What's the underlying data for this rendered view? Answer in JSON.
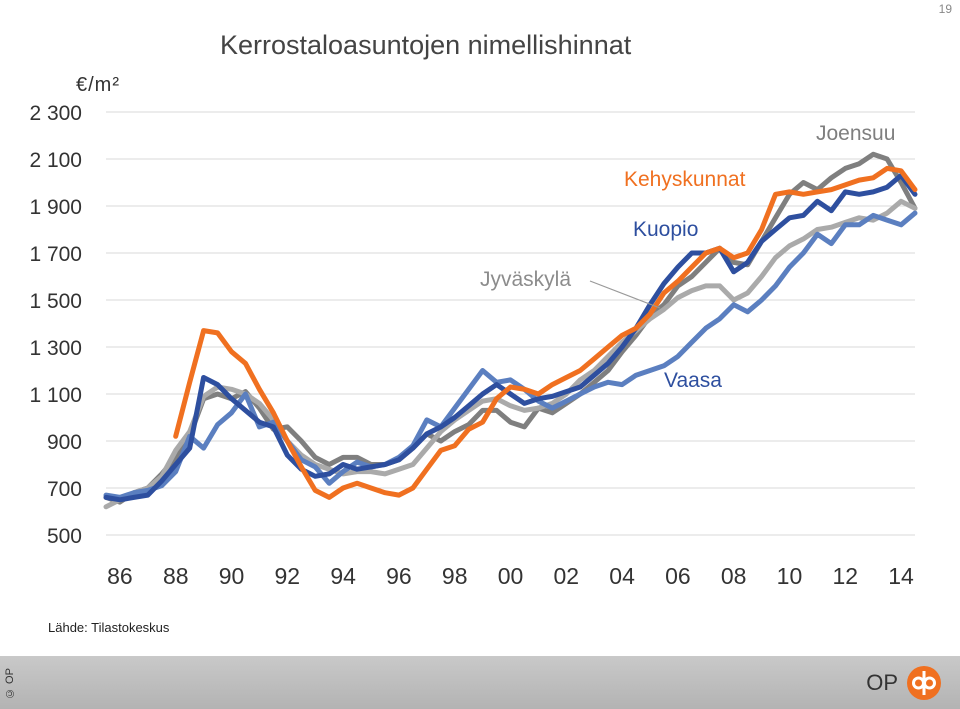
{
  "page_number": "19",
  "title": "Kerrostaloasuntojen nimellishinnat",
  "unit_label": "€/m²",
  "source": "Lähde: Tilastokeskus",
  "footer": {
    "copyright": "© OP",
    "logo_text": "OP"
  },
  "colors": {
    "Joensuu": "#7f7f7f",
    "Kehyskunnat": "#f07020",
    "Kuopio": "#2e4f9f",
    "Jyväskylä": "#aaaaaa",
    "Vaasa": "#5b7fc0",
    "logo": "#f07020"
  },
  "chart_data": {
    "type": "line",
    "title": "Kerrostaloasuntojen nimellishinnat",
    "ylabel": "€/m²",
    "xlabel": "",
    "ylim": [
      500,
      2300
    ],
    "yticks": [
      500,
      700,
      900,
      1100,
      1300,
      1500,
      1700,
      1900,
      2100,
      2300
    ],
    "ytick_labels": [
      "500",
      "700",
      "900",
      "1 100",
      "1 300",
      "1 500",
      "1 700",
      "1 900",
      "2 100",
      "2 300"
    ],
    "xlim": [
      1985.5,
      2014.5
    ],
    "xticks": [
      1986,
      1988,
      1990,
      1992,
      1994,
      1996,
      1998,
      2000,
      2002,
      2004,
      2006,
      2008,
      2010,
      2012,
      2014
    ],
    "xtick_labels": [
      "86",
      "88",
      "90",
      "92",
      "94",
      "96",
      "98",
      "00",
      "02",
      "04",
      "06",
      "08",
      "10",
      "12",
      "14"
    ],
    "grid": "horizontal",
    "legend": "inline labels",
    "series": [
      {
        "name": "Joensuu",
        "x": [
          1985.5,
          1986,
          1986.5,
          1987,
          1987.5,
          1988,
          1988.5,
          1989,
          1989.5,
          1990,
          1990.5,
          1991,
          1991.5,
          1992,
          1992.5,
          1993,
          1993.5,
          1994,
          1994.5,
          1995,
          1995.5,
          1996,
          1996.5,
          1997,
          1997.5,
          1998,
          1998.5,
          1999,
          1999.5,
          2000,
          2000.5,
          2001,
          2001.5,
          2002,
          2002.5,
          2003,
          2003.5,
          2004,
          2004.5,
          2005,
          2005.5,
          2006,
          2006.5,
          2007,
          2007.5,
          2008,
          2008.5,
          2009,
          2009.5,
          2010,
          2010.5,
          2011,
          2011.5,
          2012,
          2012.5,
          2013,
          2013.5,
          2014,
          2014.5
        ],
        "y": [
          660,
          640,
          680,
          700,
          760,
          830,
          920,
          1080,
          1100,
          1080,
          1110,
          1040,
          950,
          960,
          900,
          830,
          800,
          830,
          830,
          800,
          800,
          820,
          870,
          930,
          900,
          940,
          970,
          1030,
          1030,
          980,
          960,
          1040,
          1020,
          1060,
          1100,
          1150,
          1200,
          1280,
          1350,
          1430,
          1480,
          1560,
          1600,
          1660,
          1720,
          1660,
          1650,
          1750,
          1850,
          1950,
          2000,
          1970,
          2020,
          2060,
          2080,
          2120,
          2100,
          2000,
          1890
        ]
      },
      {
        "name": "Kehyskunnat",
        "x": [
          1988,
          1988.5,
          1989,
          1989.5,
          1990,
          1990.5,
          1991,
          1991.5,
          1992,
          1992.5,
          1993,
          1993.5,
          1994,
          1994.5,
          1995,
          1995.5,
          1996,
          1996.5,
          1997,
          1997.5,
          1998,
          1998.5,
          1999,
          1999.5,
          2000,
          2000.5,
          2001,
          2001.5,
          2002,
          2002.5,
          2003,
          2003.5,
          2004,
          2004.5,
          2005,
          2005.5,
          2006,
          2006.5,
          2007,
          2007.5,
          2008,
          2008.5,
          2009,
          2009.5,
          2010,
          2010.5,
          2011,
          2011.5,
          2012,
          2012.5,
          2013,
          2013.5,
          2014,
          2014.5
        ],
        "y": [
          920,
          1150,
          1370,
          1360,
          1280,
          1230,
          1120,
          1020,
          900,
          790,
          690,
          660,
          700,
          720,
          700,
          680,
          670,
          700,
          780,
          860,
          880,
          950,
          980,
          1080,
          1130,
          1120,
          1100,
          1140,
          1170,
          1200,
          1250,
          1300,
          1350,
          1380,
          1440,
          1530,
          1580,
          1640,
          1700,
          1720,
          1680,
          1700,
          1800,
          1950,
          1960,
          1950,
          1960,
          1970,
          1990,
          2010,
          2020,
          2060,
          2050,
          1970
        ]
      },
      {
        "name": "Kuopio",
        "x": [
          1985.5,
          1986,
          1986.5,
          1987,
          1987.5,
          1988,
          1988.5,
          1989,
          1989.5,
          1990,
          1990.5,
          1991,
          1991.5,
          1992,
          1992.5,
          1993,
          1993.5,
          1994,
          1994.5,
          1995,
          1995.5,
          1996,
          1996.5,
          1997,
          1997.5,
          1998,
          1998.5,
          1999,
          1999.5,
          2000,
          2000.5,
          2001,
          2001.5,
          2002,
          2002.5,
          2003,
          2003.5,
          2004,
          2004.5,
          2005,
          2005.5,
          2006,
          2006.5,
          2007,
          2007.5,
          2008,
          2008.5,
          2009,
          2009.5,
          2010,
          2010.5,
          2011,
          2011.5,
          2012,
          2012.5,
          2013,
          2013.5,
          2014,
          2014.5
        ],
        "y": [
          660,
          650,
          660,
          670,
          730,
          800,
          870,
          1170,
          1140,
          1080,
          1030,
          980,
          960,
          840,
          780,
          750,
          760,
          800,
          780,
          790,
          800,
          820,
          870,
          930,
          960,
          1000,
          1050,
          1100,
          1140,
          1100,
          1060,
          1080,
          1090,
          1110,
          1130,
          1180,
          1230,
          1300,
          1380,
          1480,
          1570,
          1640,
          1700,
          1700,
          1720,
          1620,
          1660,
          1750,
          1800,
          1850,
          1860,
          1920,
          1880,
          1960,
          1950,
          1960,
          1980,
          2030,
          1950
        ]
      },
      {
        "name": "Jyväskylä",
        "x": [
          1985.5,
          1986,
          1986.5,
          1987,
          1987.5,
          1988,
          1988.5,
          1989,
          1989.5,
          1990,
          1990.5,
          1991,
          1991.5,
          1992,
          1992.5,
          1993,
          1993.5,
          1994,
          1994.5,
          1995,
          1995.5,
          1996,
          1996.5,
          1997,
          1997.5,
          1998,
          1998.5,
          1999,
          1999.5,
          2000,
          2000.5,
          2001,
          2001.5,
          2002,
          2002.5,
          2003,
          2003.5,
          2004,
          2004.5,
          2005,
          2005.5,
          2006,
          2006.5,
          2007,
          2007.5,
          2008,
          2008.5,
          2009,
          2009.5,
          2010,
          2010.5,
          2011,
          2011.5,
          2012,
          2012.5,
          2013,
          2013.5,
          2014,
          2014.5
        ],
        "y": [
          620,
          650,
          680,
          700,
          750,
          860,
          940,
          1090,
          1130,
          1120,
          1100,
          1060,
          990,
          900,
          840,
          800,
          780,
          760,
          770,
          770,
          760,
          780,
          800,
          870,
          940,
          990,
          1030,
          1070,
          1080,
          1050,
          1030,
          1040,
          1060,
          1100,
          1160,
          1200,
          1260,
          1320,
          1370,
          1420,
          1460,
          1510,
          1540,
          1560,
          1560,
          1500,
          1530,
          1600,
          1680,
          1730,
          1760,
          1800,
          1810,
          1830,
          1850,
          1840,
          1870,
          1920,
          1890
        ]
      },
      {
        "name": "Vaasa",
        "x": [
          1985.5,
          1986,
          1986.5,
          1987,
          1987.5,
          1988,
          1988.5,
          1989,
          1989.5,
          1990,
          1990.5,
          1991,
          1991.5,
          1992,
          1992.5,
          1993,
          1993.5,
          1994,
          1994.5,
          1995,
          1995.5,
          1996,
          1996.5,
          1997,
          1997.5,
          1998,
          1998.5,
          1999,
          1999.5,
          2000,
          2000.5,
          2001,
          2001.5,
          2002,
          2002.5,
          2003,
          2003.5,
          2004,
          2004.5,
          2005,
          2005.5,
          2006,
          2006.5,
          2007,
          2007.5,
          2008,
          2008.5,
          2009,
          2009.5,
          2010,
          2010.5,
          2011,
          2011.5,
          2012,
          2012.5,
          2013,
          2013.5,
          2014,
          2014.5
        ],
        "y": [
          670,
          660,
          680,
          690,
          710,
          770,
          920,
          870,
          970,
          1020,
          1100,
          960,
          980,
          900,
          820,
          790,
          720,
          770,
          810,
          790,
          800,
          830,
          880,
          990,
          960,
          1040,
          1120,
          1200,
          1150,
          1160,
          1120,
          1070,
          1040,
          1070,
          1100,
          1130,
          1150,
          1140,
          1180,
          1200,
          1220,
          1260,
          1320,
          1380,
          1420,
          1480,
          1450,
          1500,
          1560,
          1640,
          1700,
          1780,
          1740,
          1820,
          1820,
          1860,
          1840,
          1820,
          1870
        ]
      }
    ],
    "annotations": [
      {
        "text": "Joensuu",
        "series": "Joensuu"
      },
      {
        "text": "Kehyskunnat",
        "series": "Kehyskunnat"
      },
      {
        "text": "Kuopio",
        "series": "Kuopio"
      },
      {
        "text": "Jyväskylä",
        "series": "Jyväskylä"
      },
      {
        "text": "Vaasa",
        "series": "Vaasa"
      }
    ]
  }
}
